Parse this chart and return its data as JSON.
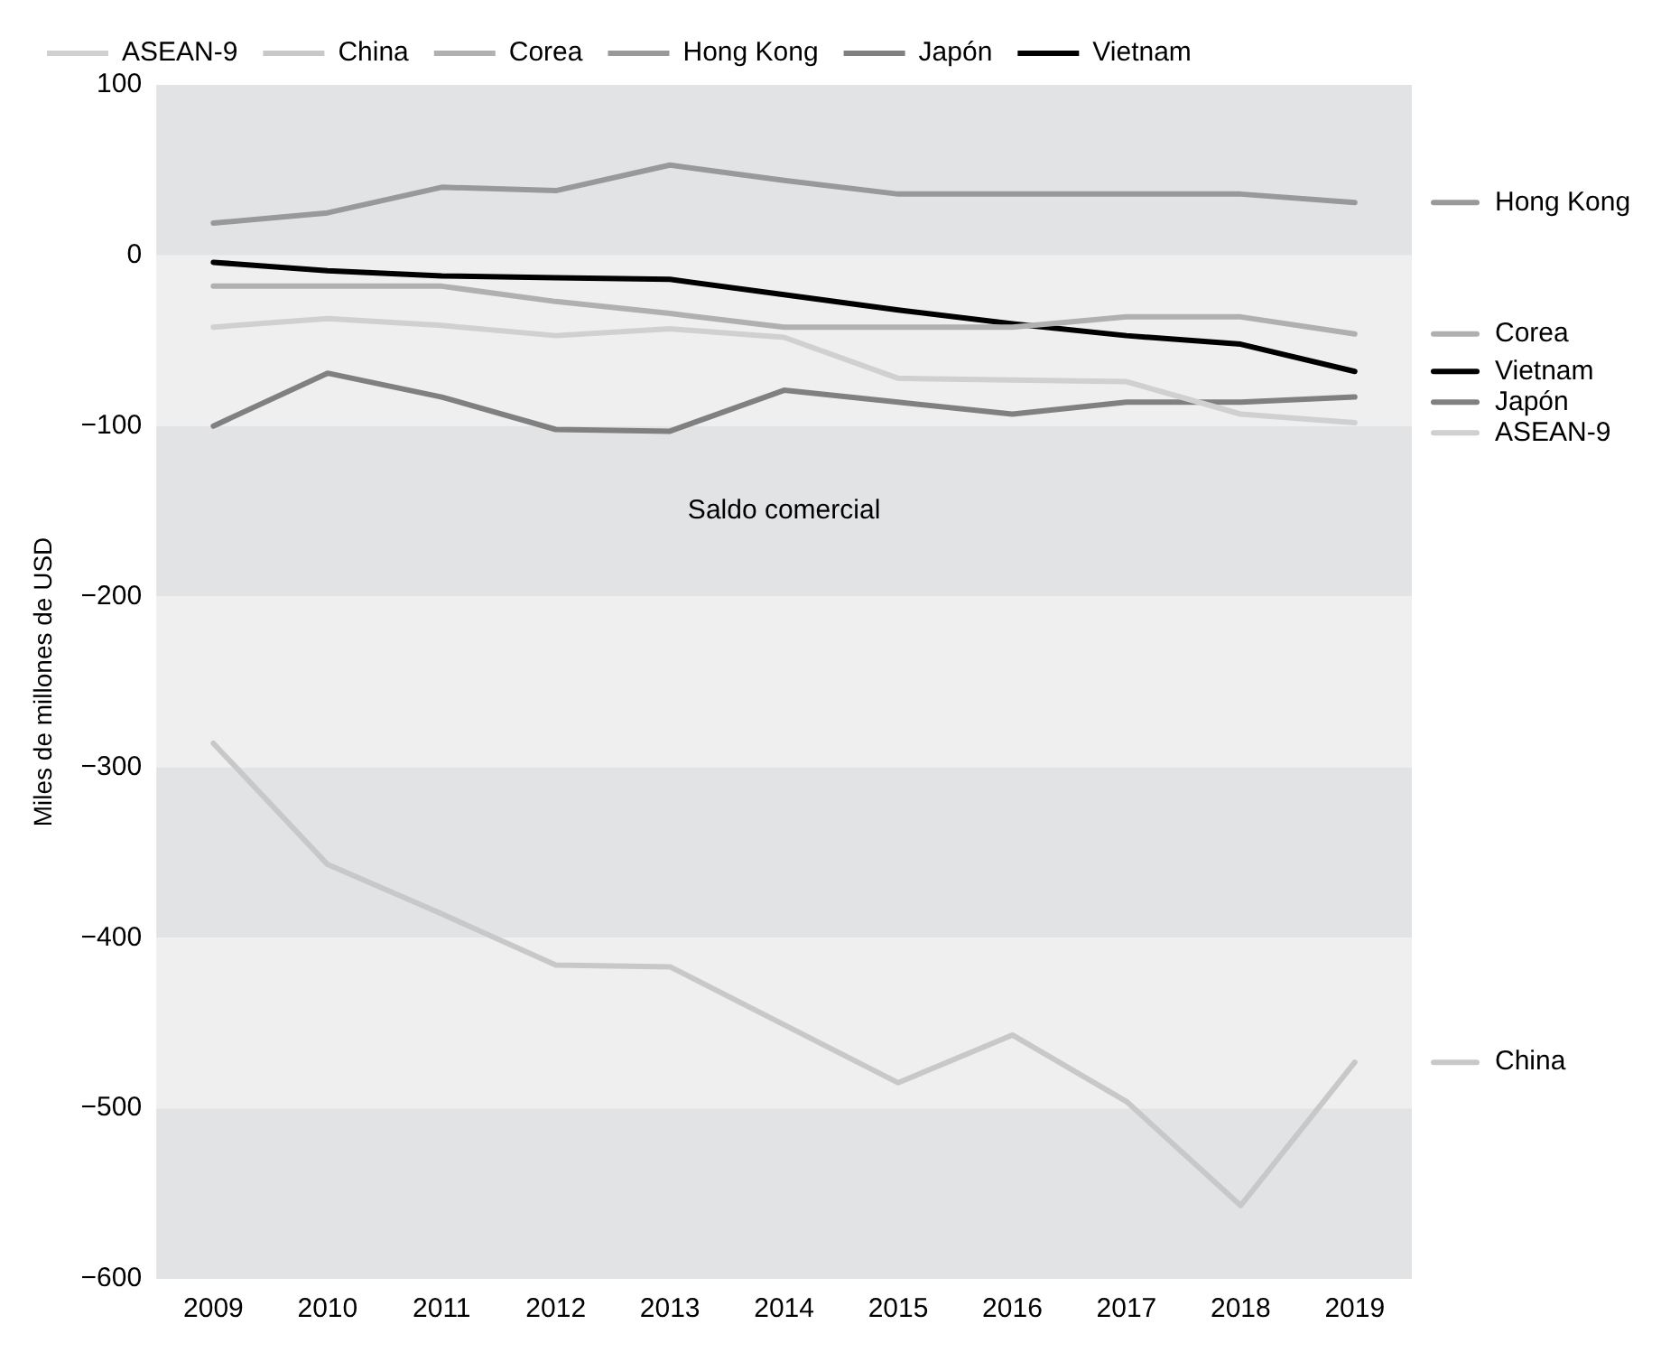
{
  "chart_data": {
    "type": "line",
    "ylabel": "Miles de millones de USD",
    "categories": [
      "2009",
      "2010",
      "2011",
      "2012",
      "2013",
      "2014",
      "2015",
      "2016",
      "2017",
      "2018",
      "2019"
    ],
    "series": [
      {
        "name": "ASEAN-9",
        "color": "#d0d0d0",
        "values": [
          -42,
          -37,
          -41,
          -47,
          -43,
          -48,
          -72,
          -73,
          -74,
          -93,
          -98
        ]
      },
      {
        "name": "China",
        "color": "#c8c8c8",
        "values": [
          -286,
          -357,
          -386,
          -416,
          -417,
          -451,
          -485,
          -457,
          -496,
          -557,
          -473
        ]
      },
      {
        "name": "Corea",
        "color": "#b0b0b0",
        "values": [
          -18,
          -18,
          -18,
          -27,
          -34,
          -42,
          -42,
          -42,
          -36,
          -36,
          -46
        ]
      },
      {
        "name": "Hong Kong",
        "color": "#999999",
        "values": [
          19,
          25,
          40,
          38,
          53,
          44,
          36,
          36,
          36,
          36,
          31
        ]
      },
      {
        "name": "Japón",
        "color": "#808080",
        "values": [
          -100,
          -69,
          -83,
          -102,
          -103,
          -79,
          -86,
          -93,
          -86,
          -86,
          -83
        ]
      },
      {
        "name": "Vietnam",
        "color": "#000000",
        "values": [
          -4,
          -9,
          -12,
          -13,
          -14,
          -23,
          -32,
          -40,
          -47,
          -52,
          -68
        ]
      }
    ],
    "ylim": [
      -600,
      100
    ],
    "yticks": [
      {
        "value": 100,
        "label": "100"
      },
      {
        "value": 0,
        "label": "0"
      },
      {
        "value": -100,
        "label": "−100"
      },
      {
        "value": -200,
        "label": "−200"
      },
      {
        "value": -300,
        "label": "−300"
      },
      {
        "value": -400,
        "label": "−400"
      },
      {
        "value": -500,
        "label": "−500"
      },
      {
        "value": -600,
        "label": "−600"
      }
    ],
    "legend": "top",
    "marker": "none",
    "line_style": "solid",
    "bands": [
      {
        "axis": "y",
        "from": 0,
        "to": 100,
        "color": "#e2e3e5"
      },
      {
        "axis": "y",
        "from": -100,
        "to": 0,
        "color": "#efefef"
      },
      {
        "axis": "y",
        "from": -200,
        "to": -100,
        "color": "#e2e3e5"
      },
      {
        "axis": "y",
        "from": -300,
        "to": -200,
        "color": "#efefef"
      },
      {
        "axis": "y",
        "from": -400,
        "to": -300,
        "color": "#e2e3e5"
      },
      {
        "axis": "y",
        "from": -500,
        "to": -400,
        "color": "#efefef"
      },
      {
        "axis": "y",
        "from": -600,
        "to": -500,
        "color": "#e2e3e5"
      }
    ],
    "annotations": [
      "Saldo comercial"
    ]
  }
}
